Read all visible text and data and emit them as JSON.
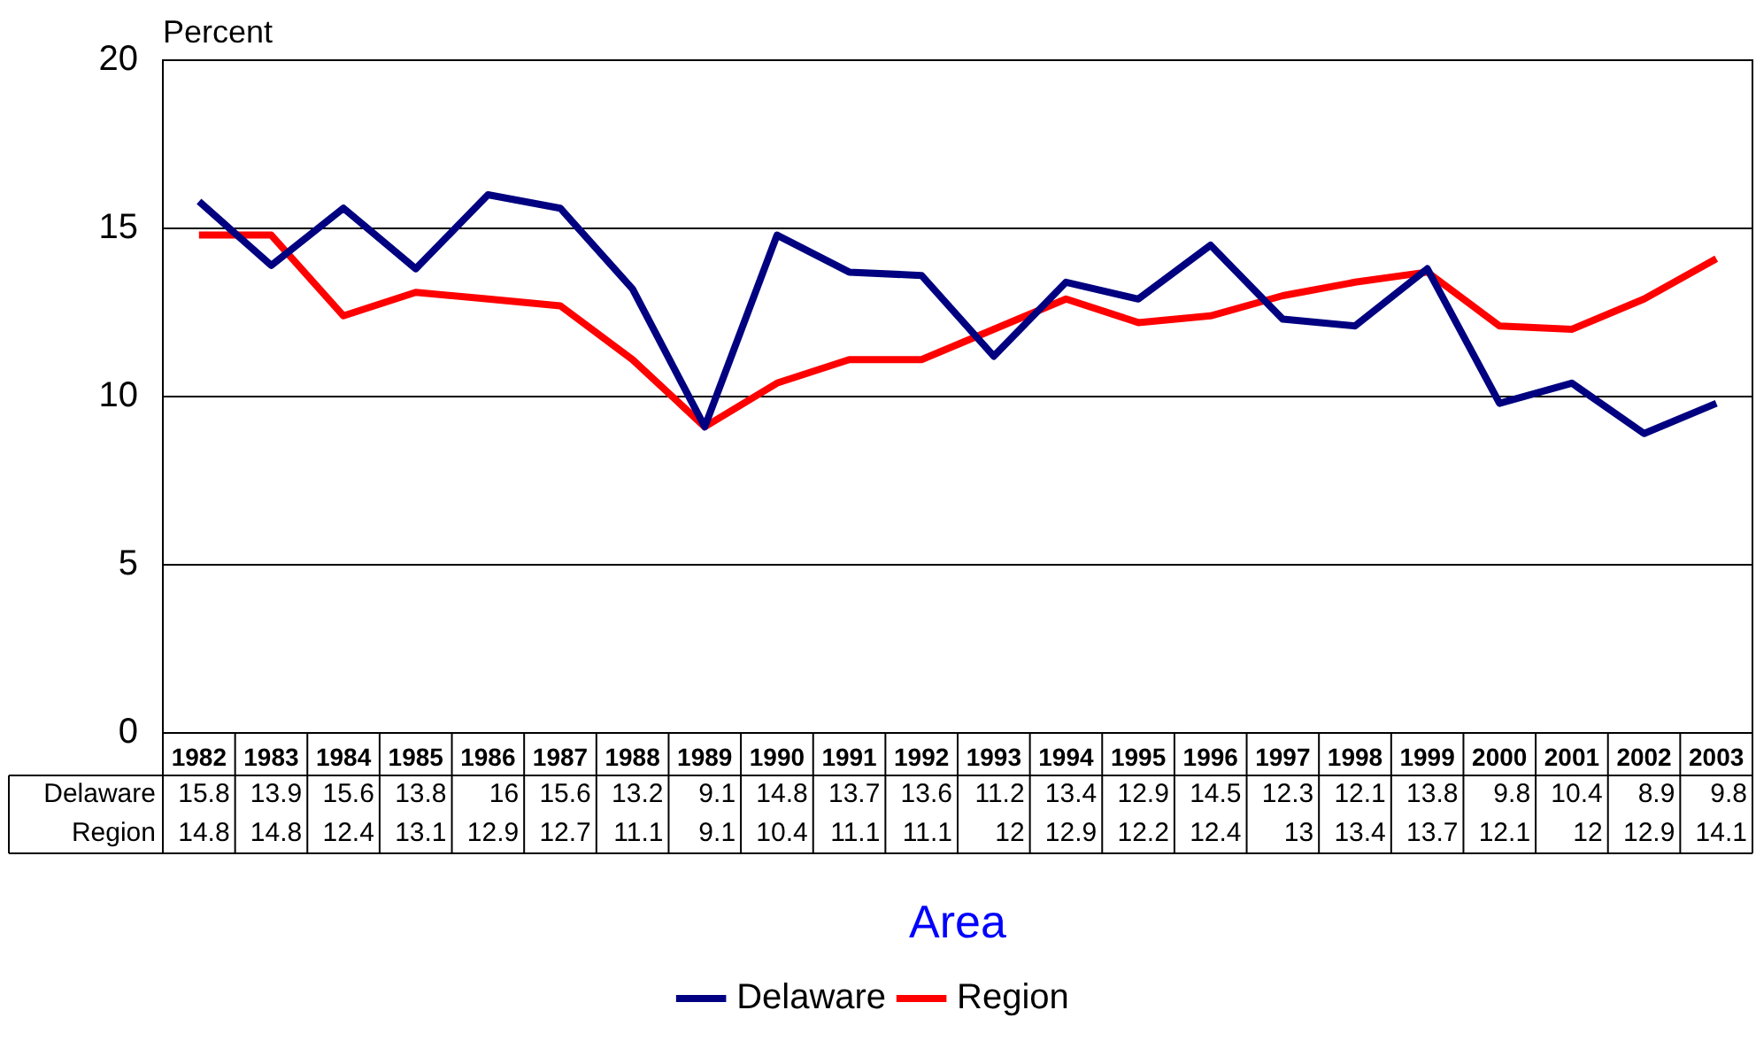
{
  "chart_data": {
    "type": "line",
    "ylabel": "Percent",
    "xlabel": "Area",
    "categories": [
      "1982",
      "1983",
      "1984",
      "1985",
      "1986",
      "1987",
      "1988",
      "1989",
      "1990",
      "1991",
      "1992",
      "1993",
      "1994",
      "1995",
      "1996",
      "1997",
      "1998",
      "1999",
      "2000",
      "2001",
      "2002",
      "2003"
    ],
    "series": [
      {
        "name": "Delaware",
        "color": "#000080",
        "values": [
          15.8,
          13.9,
          15.6,
          13.8,
          16,
          15.6,
          13.2,
          9.1,
          14.8,
          13.7,
          13.6,
          11.2,
          13.4,
          12.9,
          14.5,
          12.3,
          12.1,
          13.8,
          9.8,
          10.4,
          8.9,
          9.8
        ]
      },
      {
        "name": "Region",
        "color": "#ff0000",
        "values": [
          14.8,
          14.8,
          12.4,
          13.1,
          12.9,
          12.7,
          11.1,
          9.1,
          10.4,
          11.1,
          11.1,
          12,
          12.9,
          12.2,
          12.4,
          13,
          13.4,
          13.7,
          12.1,
          12,
          12.9,
          14.1
        ]
      }
    ],
    "ylim": [
      0,
      20
    ],
    "yticks": [
      0,
      5,
      10,
      15,
      20
    ],
    "grid": "y",
    "legend": "bottom",
    "marker": "none",
    "line_style": "solid",
    "data_labels": true
  }
}
